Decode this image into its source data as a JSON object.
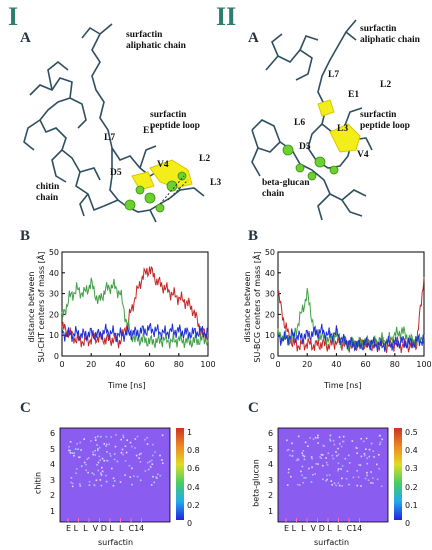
{
  "left": {
    "roman": "I",
    "panel_a": "A",
    "panel_b": "B",
    "panel_c": "C",
    "labels": {
      "surfactin_aliphatic": [
        "surfactin",
        "aliphatic chain"
      ],
      "surfactin_peptide": [
        "surfactin",
        "peptide loop"
      ],
      "polymer": [
        "chitin",
        "chain"
      ]
    },
    "residues": {
      "L7": "L7",
      "E1": "E1",
      "V4": "V4",
      "L2": "L2",
      "D5": "D5",
      "L3": "L3"
    },
    "plot_ylabel": [
      "distance between",
      "SU-CHT centers of mass [Å]"
    ],
    "plot_xlabel": "Time [ns]",
    "heat_ylabel": "chitin",
    "heat_xlabel": "surfactin",
    "heat_xticks": "E L  L  V D L  L  C14",
    "heat_yticks": [
      "6",
      "5",
      "4",
      "3",
      "2",
      "1"
    ],
    "cbar_ticks": [
      "1",
      "0.8",
      "0.6",
      "0.4",
      "0.2",
      "0"
    ]
  },
  "right": {
    "roman": "II",
    "panel_a": "A",
    "panel_b": "B",
    "panel_c": "C",
    "labels": {
      "surfactin_aliphatic": [
        "surfactin",
        "aliphatic chain"
      ],
      "surfactin_peptide": [
        "surfactin",
        "peptide loop"
      ],
      "polymer": [
        "beta-glucan",
        "chain"
      ]
    },
    "residues": {
      "L7": "L7",
      "E1": "E1",
      "L2": "L2",
      "L6": "L6",
      "D5": "D5",
      "L3": "L3",
      "V4": "V4"
    },
    "plot_ylabel": [
      "distance between",
      "SU-BCG centers of mass [Å]"
    ],
    "plot_xlabel": "Time [ns]",
    "heat_ylabel": "beta-glucan",
    "heat_xlabel": "surfactin",
    "heat_xticks": "E L  L  V D L  L  C14",
    "heat_yticks": [
      "6",
      "5",
      "4",
      "3",
      "2",
      "1"
    ],
    "cbar_ticks": [
      "0.5",
      "0.4",
      "0.3",
      "0.2",
      "0.1",
      "0"
    ]
  },
  "colors": {
    "red": "#c62828",
    "green": "#43a047",
    "blue": "#1e2fd6",
    "yellow": "#f3ee1a",
    "sphere": "#6cd12e",
    "heat_bg": "#8a5cf0"
  },
  "chart_data": [
    {
      "type": "line",
      "title": "",
      "xlabel": "Time [ns]",
      "ylabel": "distance between SU-CHT centers of mass [Å]",
      "xlim": [
        0,
        100
      ],
      "ylim": [
        0,
        50
      ],
      "x_ticks": [
        0,
        20,
        40,
        60,
        80,
        100
      ],
      "y_ticks": [
        0,
        10,
        20,
        30,
        40,
        50
      ],
      "x": [
        0,
        5,
        10,
        15,
        20,
        25,
        30,
        35,
        40,
        45,
        50,
        55,
        60,
        65,
        70,
        75,
        80,
        85,
        90,
        95,
        100
      ],
      "series": [
        {
          "color": "#c62828",
          "values": [
            14,
            11,
            8,
            7,
            8,
            9,
            8,
            8,
            7,
            16,
            28,
            38,
            42,
            36,
            33,
            30,
            28,
            26,
            22,
            12,
            9
          ]
        },
        {
          "color": "#43a047",
          "values": [
            18,
            28,
            32,
            30,
            35,
            26,
            32,
            34,
            30,
            14,
            8,
            8,
            7,
            7,
            8,
            7,
            8,
            7,
            7,
            8,
            8
          ]
        },
        {
          "color": "#1e2fd6",
          "values": [
            11,
            10,
            11,
            10,
            11,
            10,
            12,
            11,
            10,
            11,
            11,
            12,
            13,
            12,
            11,
            12,
            12,
            11,
            11,
            12,
            11
          ]
        }
      ]
    },
    {
      "type": "line",
      "title": "",
      "xlabel": "Time [ns]",
      "ylabel": "distance between SU-BCG centers of mass [Å]",
      "xlim": [
        0,
        100
      ],
      "ylim": [
        0,
        50
      ],
      "x_ticks": [
        0,
        20,
        40,
        60,
        80,
        100
      ],
      "y_ticks": [
        0,
        10,
        20,
        30,
        40,
        50
      ],
      "x": [
        0,
        5,
        10,
        15,
        20,
        25,
        30,
        35,
        40,
        45,
        50,
        55,
        60,
        65,
        70,
        75,
        80,
        85,
        90,
        95,
        100
      ],
      "series": [
        {
          "color": "#c62828",
          "values": [
            30,
            14,
            6,
            5,
            6,
            5,
            6,
            5,
            7,
            6,
            5,
            6,
            6,
            5,
            6,
            5,
            6,
            5,
            5,
            6,
            38
          ]
        },
        {
          "color": "#43a047",
          "values": [
            10,
            9,
            8,
            18,
            30,
            12,
            9,
            8,
            10,
            6,
            6,
            6,
            7,
            6,
            8,
            7,
            10,
            12,
            8,
            7,
            10
          ]
        },
        {
          "color": "#1e2fd6",
          "values": [
            9,
            8,
            10,
            9,
            10,
            11,
            12,
            10,
            11,
            7,
            6,
            5,
            6,
            6,
            5,
            6,
            6,
            7,
            6,
            7,
            8
          ]
        }
      ]
    },
    {
      "type": "heatmap",
      "xlabel": "surfactin",
      "ylabel": "chitin",
      "x_categories": [
        "E",
        "L",
        "L",
        "V",
        "D",
        "L",
        "L",
        "C14"
      ],
      "y_ticks": [
        1,
        2,
        3,
        4,
        5,
        6
      ],
      "colorbar_range": [
        0,
        1
      ]
    },
    {
      "type": "heatmap",
      "xlabel": "surfactin",
      "ylabel": "beta-glucan",
      "x_categories": [
        "E",
        "L",
        "L",
        "V",
        "D",
        "L",
        "L",
        "C14"
      ],
      "y_ticks": [
        1,
        2,
        3,
        4,
        5,
        6
      ],
      "colorbar_range": [
        0,
        0.5
      ]
    }
  ]
}
